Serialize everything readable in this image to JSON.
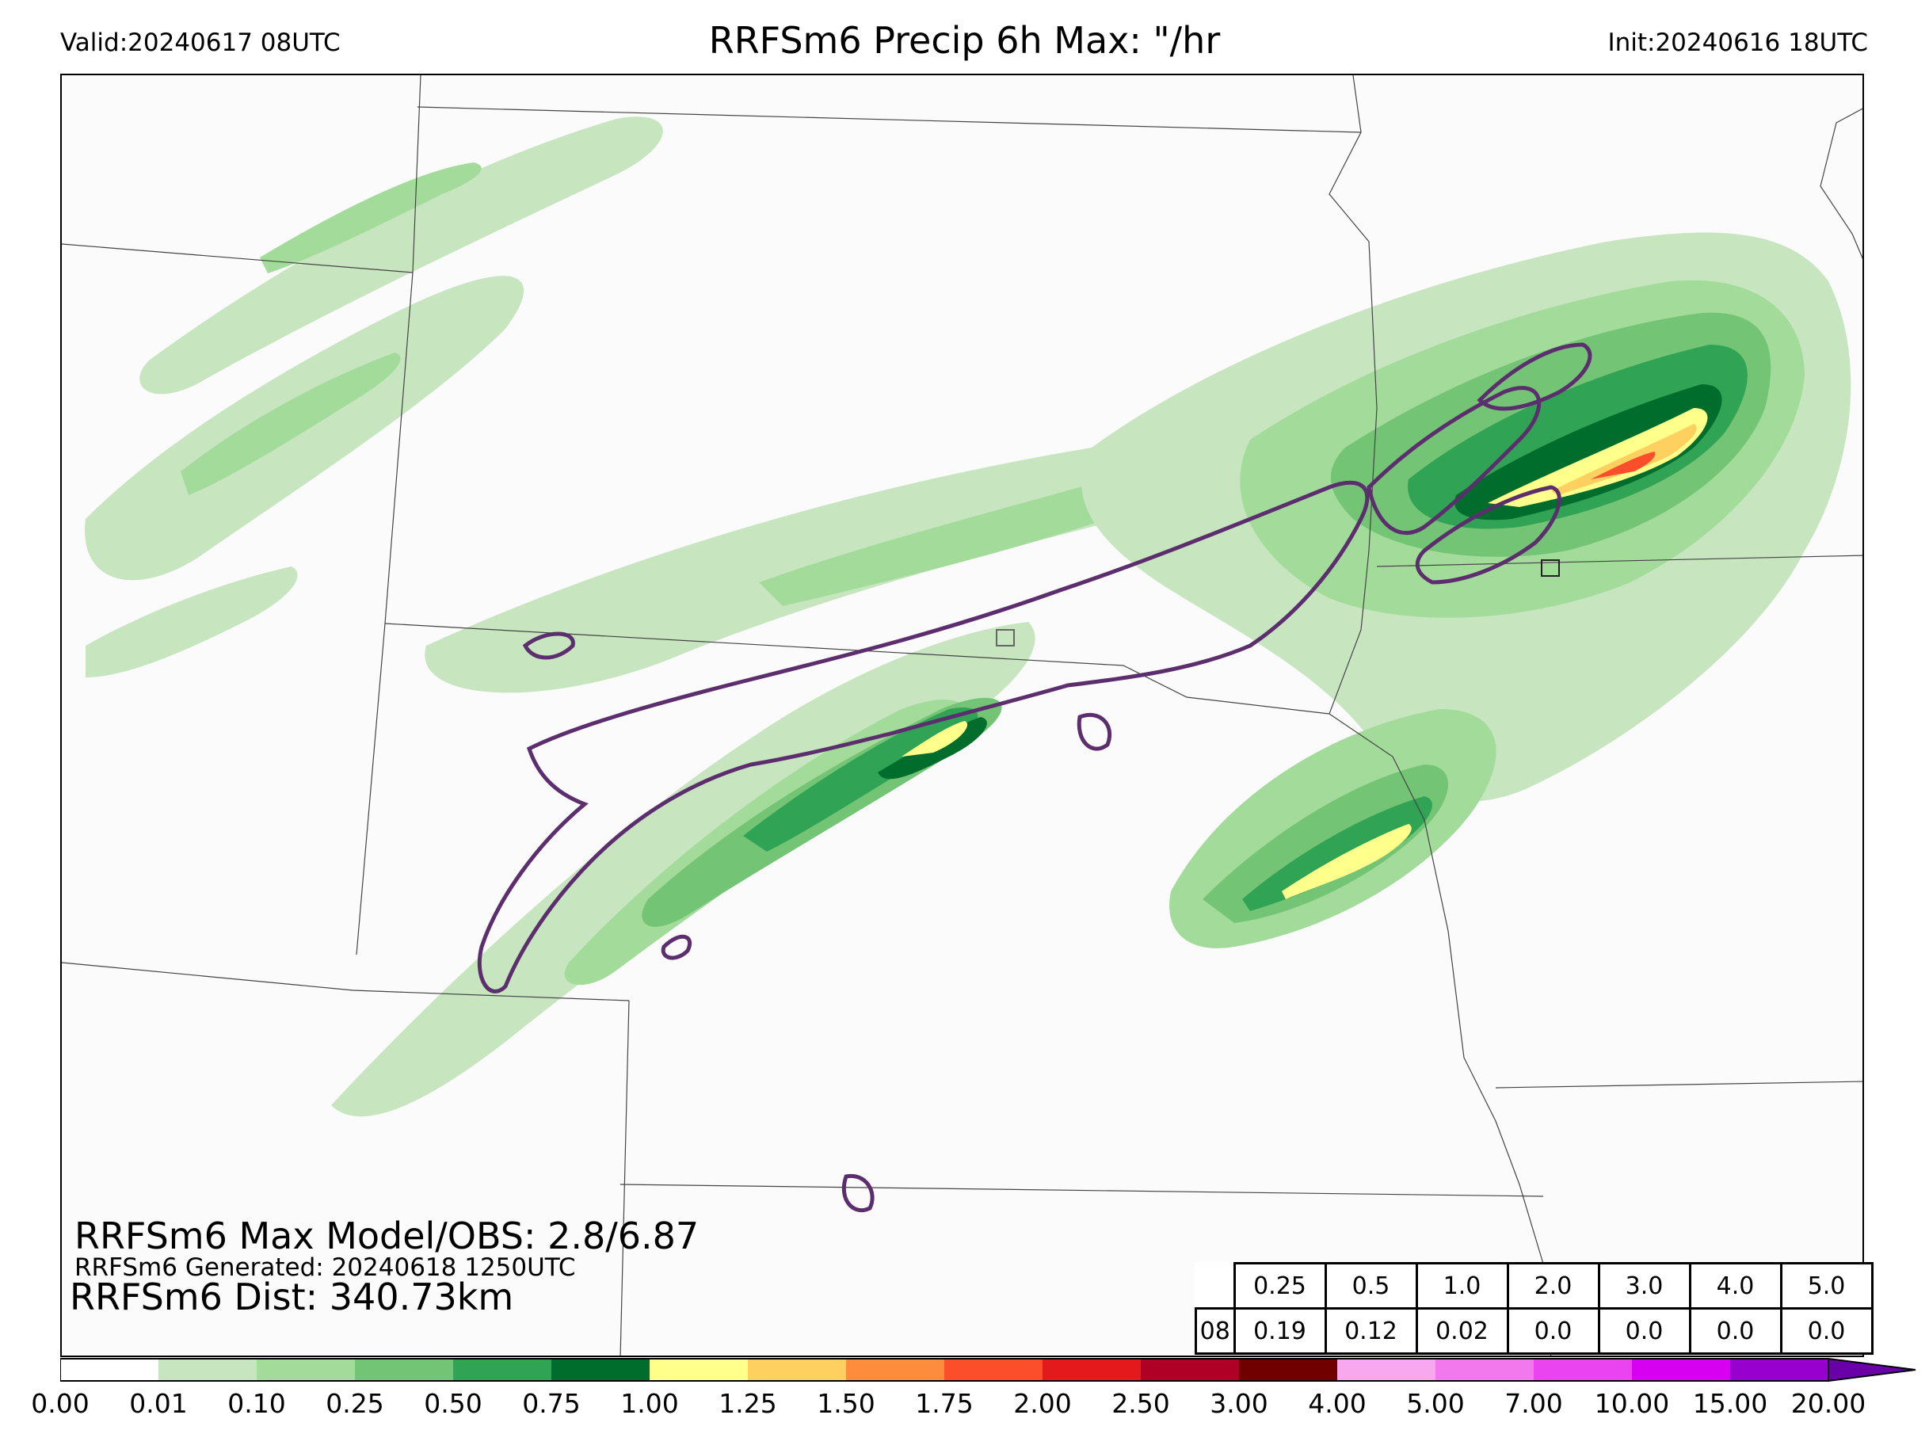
{
  "header": {
    "valid": "Valid:20240617 08UTC",
    "title": "RRFSm6 Precip 6h Max: \"/hr",
    "init": "Init:20240616 18UTC"
  },
  "stats": {
    "max_line": "RRFSm6 Max Model/OBS: 2.8/6.87",
    "generated_line": "RRFSm6 Generated: 20240618 1250UTC",
    "dist_line": "RRFSm6 Dist: 340.73km"
  },
  "threshold_table": {
    "thresholds": [
      "0.25",
      "0.5",
      "1.0",
      "2.0",
      "3.0",
      "4.0",
      "5.0"
    ],
    "row_label": "08",
    "values": [
      "0.19",
      "0.12",
      "0.02",
      "0.0",
      "0.0",
      "0.0",
      "0.0"
    ]
  },
  "colorbar": {
    "ticks": [
      "0.00",
      "0.01",
      "0.10",
      "0.25",
      "0.50",
      "0.75",
      "1.00",
      "1.25",
      "1.50",
      "1.75",
      "2.00",
      "2.50",
      "3.00",
      "4.00",
      "5.00",
      "7.00",
      "10.00",
      "15.00",
      "20.00"
    ],
    "colors": [
      "#ffffff",
      "#c7e6c0",
      "#a3dc9a",
      "#74c476",
      "#31a354",
      "#006d2c",
      "#ffff8c",
      "#fed060",
      "#fd8d3c",
      "#fc4e2a",
      "#e31a1c",
      "#b10026",
      "#700000",
      "#f7a8ee",
      "#f278ee",
      "#ea44f0",
      "#d800f0",
      "#9800d0"
    ],
    "extend_color": "#6a00a8"
  },
  "map": {
    "obs_contour_color": "#5c2e6e",
    "border_color": "#444444"
  }
}
